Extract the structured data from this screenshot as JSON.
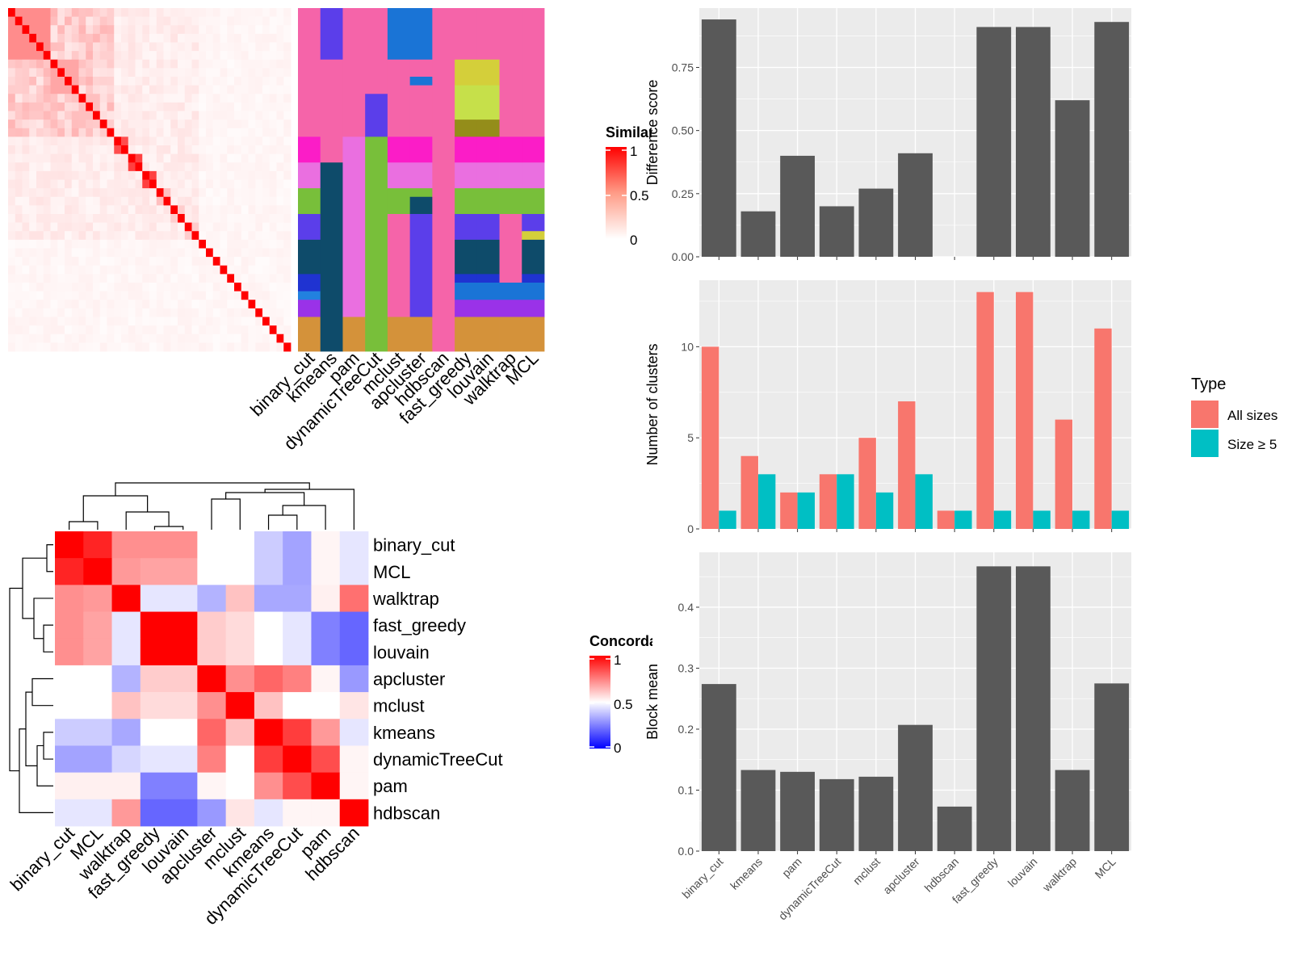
{
  "colors": {
    "bar_fill": "#595959",
    "panel_bg": "#ebebeb",
    "grid": "#ffffff",
    "all_sizes": "#f8766d",
    "size_ge5": "#00bfc4",
    "dendro": "#000000"
  },
  "similarity_legend": {
    "title": "Similarity",
    "ticks": [
      "1",
      "0.5",
      "0"
    ]
  },
  "concordance_legend": {
    "title": "Concordance",
    "ticks": [
      "1",
      "0.5",
      "0"
    ]
  },
  "similarity_heatmap": {
    "n": 40,
    "blocks": [
      {
        "start": 0,
        "size": 6,
        "within": 0.45
      },
      {
        "start": 6,
        "size": 4,
        "within": 0.35
      },
      {
        "start": 10,
        "size": 3,
        "within": 0.25
      },
      {
        "start": 13,
        "size": 2,
        "within": 0.2
      },
      {
        "start": 15,
        "size": 2,
        "within": 0.7
      },
      {
        "start": 17,
        "size": 2,
        "within": 0.75
      },
      {
        "start": 19,
        "size": 2,
        "within": 0.75
      },
      {
        "start": 21,
        "size": 2,
        "within": 0.25
      },
      {
        "start": 23,
        "size": 2,
        "within": 0.2
      },
      {
        "start": 25,
        "size": 2,
        "within": 0.2
      },
      {
        "start": 27,
        "size": 13,
        "within": 0.0
      }
    ],
    "background": 0.08
  },
  "membership_grid": {
    "columns": [
      "binary_cut",
      "kmeans",
      "pam",
      "dynamicTreeCut",
      "mclust",
      "apcluster",
      "hdbscan",
      "fast_greedy",
      "louvain",
      "walktrap",
      "MCL"
    ],
    "segments": [
      [
        [
          0,
          15,
          "#f564a9"
        ],
        [
          15,
          18,
          "#fb1dc7"
        ],
        [
          18,
          21,
          "#ea6fe0"
        ],
        [
          21,
          24,
          "#78bf3a"
        ],
        [
          24,
          27,
          "#5b3eea"
        ],
        [
          27,
          31,
          "#0e4b6a"
        ],
        [
          31,
          33,
          "#1f33d1"
        ],
        [
          33,
          34,
          "#2281df"
        ],
        [
          34,
          36,
          "#9a32e8"
        ],
        [
          36,
          40,
          "#d4923a"
        ]
      ],
      [
        [
          0,
          6,
          "#5b3eea"
        ],
        [
          6,
          18,
          "#f564a9"
        ],
        [
          18,
          40,
          "#0e4b6a"
        ]
      ],
      [
        [
          0,
          15,
          "#f564a9"
        ],
        [
          15,
          36,
          "#ea6fe0"
        ],
        [
          36,
          40,
          "#d4923a"
        ]
      ],
      [
        [
          0,
          10,
          "#f564a9"
        ],
        [
          10,
          15,
          "#5b3eea"
        ],
        [
          15,
          40,
          "#78bf3a"
        ]
      ],
      [
        [
          0,
          6,
          "#1a74d6"
        ],
        [
          6,
          15,
          "#f564a9"
        ],
        [
          15,
          18,
          "#fb1dc7"
        ],
        [
          18,
          21,
          "#ea6fe0"
        ],
        [
          21,
          24,
          "#78bf3a"
        ],
        [
          24,
          36,
          "#f564a9"
        ],
        [
          36,
          40,
          "#d4923a"
        ]
      ],
      [
        [
          0,
          6,
          "#1a74d6"
        ],
        [
          6,
          8,
          "#f564a9"
        ],
        [
          8,
          9,
          "#1a74d6"
        ],
        [
          9,
          15,
          "#f564a9"
        ],
        [
          15,
          18,
          "#fb1dc7"
        ],
        [
          18,
          21,
          "#ea6fe0"
        ],
        [
          21,
          22,
          "#78bf3a"
        ],
        [
          22,
          24,
          "#0e4b6a"
        ],
        [
          24,
          36,
          "#5b3eea"
        ],
        [
          36,
          40,
          "#d4923a"
        ]
      ],
      [
        [
          0,
          40,
          "#f564a9"
        ]
      ],
      [
        [
          0,
          6,
          "#f564a9"
        ],
        [
          6,
          9,
          "#d4cf3a"
        ],
        [
          9,
          13,
          "#c6e04a"
        ],
        [
          13,
          15,
          "#948d1a"
        ],
        [
          15,
          18,
          "#fb1dc7"
        ],
        [
          18,
          21,
          "#ea6fe0"
        ],
        [
          21,
          24,
          "#78bf3a"
        ],
        [
          24,
          27,
          "#5b3eea"
        ],
        [
          27,
          31,
          "#0e4b6a"
        ],
        [
          31,
          32,
          "#1f33d1"
        ],
        [
          32,
          34,
          "#1a74d6"
        ],
        [
          34,
          36,
          "#9a32e8"
        ],
        [
          36,
          40,
          "#d4923a"
        ]
      ],
      [
        [
          0,
          6,
          "#f564a9"
        ],
        [
          6,
          9,
          "#d4cf3a"
        ],
        [
          9,
          13,
          "#c6e04a"
        ],
        [
          13,
          15,
          "#948d1a"
        ],
        [
          15,
          18,
          "#fb1dc7"
        ],
        [
          18,
          21,
          "#ea6fe0"
        ],
        [
          21,
          24,
          "#78bf3a"
        ],
        [
          24,
          27,
          "#5b3eea"
        ],
        [
          27,
          31,
          "#0e4b6a"
        ],
        [
          31,
          32,
          "#1f33d1"
        ],
        [
          32,
          34,
          "#1a74d6"
        ],
        [
          34,
          36,
          "#9a32e8"
        ],
        [
          36,
          40,
          "#d4923a"
        ]
      ],
      [
        [
          0,
          15,
          "#f564a9"
        ],
        [
          15,
          18,
          "#fb1dc7"
        ],
        [
          18,
          21,
          "#ea6fe0"
        ],
        [
          21,
          24,
          "#78bf3a"
        ],
        [
          24,
          32,
          "#f564a9"
        ],
        [
          32,
          34,
          "#1a74d6"
        ],
        [
          34,
          36,
          "#9a32e8"
        ],
        [
          36,
          40,
          "#d4923a"
        ]
      ],
      [
        [
          0,
          15,
          "#f564a9"
        ],
        [
          15,
          18,
          "#fb1dc7"
        ],
        [
          18,
          21,
          "#ea6fe0"
        ],
        [
          21,
          24,
          "#78bf3a"
        ],
        [
          24,
          26,
          "#5b3eea"
        ],
        [
          26,
          27,
          "#d4cf3a"
        ],
        [
          27,
          31,
          "#0e4b6a"
        ],
        [
          31,
          32,
          "#1f33d1"
        ],
        [
          32,
          34,
          "#1a74d6"
        ],
        [
          34,
          36,
          "#9a32e8"
        ],
        [
          36,
          40,
          "#d4923a"
        ]
      ]
    ]
  },
  "concordance": {
    "rows": [
      "binary_cut",
      "MCL",
      "walktrap",
      "fast_greedy",
      "louvain",
      "apcluster",
      "mclust",
      "kmeans",
      "dynamicTreeCut",
      "pam",
      "hdbscan"
    ],
    "cols": [
      "binary_cut",
      "MCL",
      "walktrap",
      "fast_greedy",
      "louvain",
      "apcluster",
      "mclust",
      "kmeans",
      "dynamicTreeCut",
      "pam",
      "hdbscan"
    ],
    "matrix": [
      [
        1.0,
        0.93,
        0.72,
        0.72,
        0.72,
        0.5,
        0.5,
        0.4,
        0.32,
        0.52,
        0.45
      ],
      [
        0.93,
        1.0,
        0.7,
        0.68,
        0.68,
        0.5,
        0.5,
        0.4,
        0.32,
        0.52,
        0.45
      ],
      [
        0.72,
        0.7,
        1.0,
        0.45,
        0.45,
        0.35,
        0.62,
        0.33,
        0.33,
        0.53,
        0.78
      ],
      [
        0.72,
        0.68,
        0.45,
        1.0,
        1.0,
        0.6,
        0.57,
        0.5,
        0.45,
        0.25,
        0.2
      ],
      [
        0.72,
        0.68,
        0.45,
        1.0,
        1.0,
        0.6,
        0.57,
        0.5,
        0.45,
        0.25,
        0.2
      ],
      [
        0.5,
        0.5,
        0.35,
        0.6,
        0.6,
        1.0,
        0.72,
        0.8,
        0.75,
        0.52,
        0.3
      ],
      [
        0.5,
        0.5,
        0.62,
        0.57,
        0.57,
        0.72,
        1.0,
        0.62,
        0.5,
        0.5,
        0.55
      ],
      [
        0.4,
        0.4,
        0.33,
        0.5,
        0.5,
        0.8,
        0.62,
        1.0,
        0.88,
        0.7,
        0.45
      ],
      [
        0.32,
        0.32,
        0.42,
        0.45,
        0.45,
        0.75,
        0.5,
        0.88,
        1.0,
        0.85,
        0.52
      ],
      [
        0.53,
        0.53,
        0.53,
        0.25,
        0.25,
        0.52,
        0.5,
        0.72,
        0.85,
        1.0,
        0.52
      ],
      [
        0.45,
        0.45,
        0.7,
        0.2,
        0.2,
        0.3,
        0.55,
        0.45,
        0.52,
        0.52,
        1.0
      ]
    ]
  },
  "bar_categories": [
    "binary_cut",
    "kmeans",
    "pam",
    "dynamicTreeCut",
    "mclust",
    "apcluster",
    "hdbscan",
    "fast_greedy",
    "louvain",
    "walktrap",
    "MCL"
  ],
  "chart_data": [
    {
      "type": "bar",
      "categories": [
        "binary_cut",
        "kmeans",
        "pam",
        "dynamicTreeCut",
        "mclust",
        "apcluster",
        "hdbscan",
        "fast_greedy",
        "louvain",
        "walktrap",
        "MCL"
      ],
      "values": [
        0.94,
        0.18,
        0.4,
        0.2,
        0.27,
        0.41,
        0.0,
        0.91,
        0.91,
        0.62,
        0.93
      ],
      "ylabel": "Difference score",
      "ylim": [
        0,
        0.985
      ],
      "yticks": [
        "0.00",
        "0.25",
        "0.50",
        "0.75"
      ],
      "yticks_values": [
        0,
        0.25,
        0.5,
        0.75
      ],
      "grid": true
    },
    {
      "type": "bar",
      "categories": [
        "binary_cut",
        "kmeans",
        "pam",
        "dynamicTreeCut",
        "mclust",
        "apcluster",
        "hdbscan",
        "fast_greedy",
        "louvain",
        "walktrap",
        "MCL"
      ],
      "series": [
        {
          "name": "All sizes",
          "values": [
            10,
            4,
            2,
            3,
            5,
            7,
            1,
            13,
            13,
            6,
            11
          ]
        },
        {
          "name": "Size ≥ 5",
          "values": [
            1,
            3,
            2,
            3,
            2,
            3,
            1,
            1,
            1,
            1,
            1
          ]
        }
      ],
      "ylabel": "Number of clusters",
      "ylim": [
        0,
        13.65
      ],
      "yticks": [
        "0",
        "5",
        "10"
      ],
      "yticks_values": [
        0,
        5,
        10
      ],
      "legend": {
        "title": "Type",
        "position": "right"
      },
      "grid": true
    },
    {
      "type": "bar",
      "categories": [
        "binary_cut",
        "kmeans",
        "pam",
        "dynamicTreeCut",
        "mclust",
        "apcluster",
        "hdbscan",
        "fast_greedy",
        "louvain",
        "walktrap",
        "MCL"
      ],
      "values": [
        0.274,
        0.133,
        0.13,
        0.118,
        0.122,
        0.207,
        0.073,
        0.467,
        0.467,
        0.133,
        0.275
      ],
      "ylabel": "Block mean",
      "ylim": [
        0,
        0.49
      ],
      "yticks": [
        "0.0",
        "0.1",
        "0.2",
        "0.3",
        "0.4"
      ],
      "yticks_values": [
        0,
        0.1,
        0.2,
        0.3,
        0.4
      ],
      "grid": true
    }
  ]
}
